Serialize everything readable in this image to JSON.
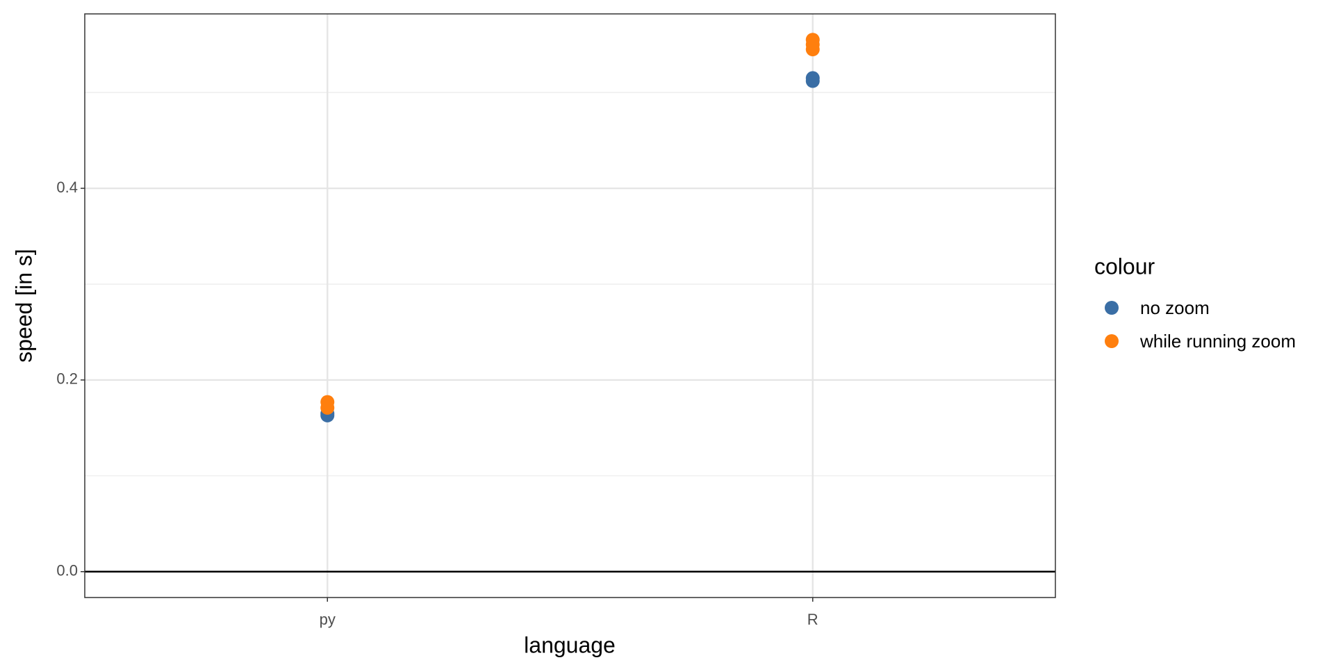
{
  "chart_data": {
    "type": "scatter",
    "x_label": "language",
    "y_label": "speed [in s]",
    "categories": [
      "py",
      "R"
    ],
    "ylim": [
      -0.027,
      0.582
    ],
    "yticks": [
      0.0,
      0.2,
      0.4
    ],
    "yminorticks": [
      0.1,
      0.3,
      0.5
    ],
    "hline": 0,
    "grid": true,
    "legend_title": "colour",
    "series": [
      {
        "name": "no zoom",
        "color": "#3a6ea5",
        "x": [
          "py",
          "py",
          "R",
          "R"
        ],
        "values": [
          0.163,
          0.165,
          0.512,
          0.515
        ]
      },
      {
        "name": "while running zoom",
        "color": "#ff7f0e",
        "x": [
          "py",
          "py",
          "R",
          "R",
          "R"
        ],
        "values": [
          0.171,
          0.177,
          0.545,
          0.55,
          0.555
        ]
      }
    ]
  }
}
